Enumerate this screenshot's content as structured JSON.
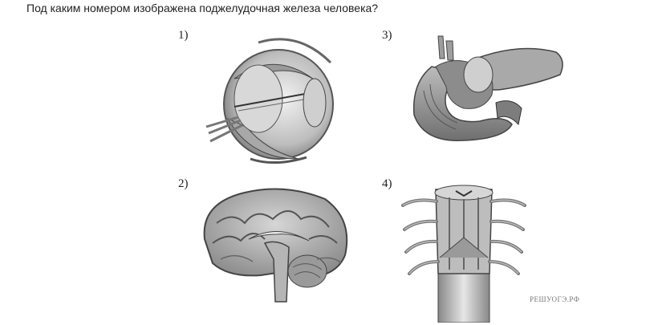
{
  "question": "Под каким номером изображена поджелудочная железа человека?",
  "options": [
    {
      "label": "1)",
      "icon": "eye-anatomy-icon"
    },
    {
      "label": "2)",
      "icon": "brain-anatomy-icon"
    },
    {
      "label": "3)",
      "icon": "pancreas-anatomy-icon"
    },
    {
      "label": "4)",
      "icon": "spinal-cord-anatomy-icon"
    }
  ],
  "watermark": "РЕШУОГЭ.РФ"
}
